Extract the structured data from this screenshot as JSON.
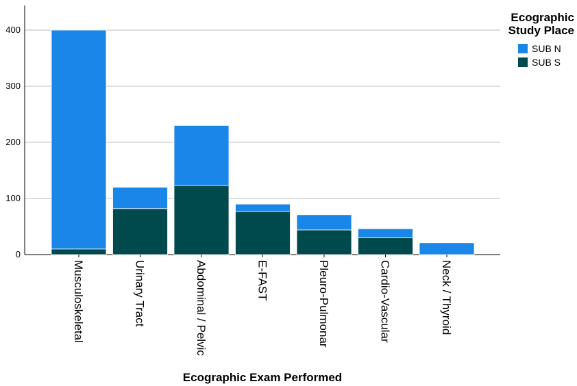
{
  "chart_data": {
    "type": "bar",
    "stacked": true,
    "title": "",
    "xlabel": "Ecographic Exam Performed",
    "ylabel": "",
    "ylim": [
      0,
      420
    ],
    "yticks": [
      0,
      100,
      200,
      300,
      400
    ],
    "grid": true,
    "categories": [
      "Musculoskeletal",
      "Urinary Tract",
      "Abdominal / Pelvic",
      "E-FAST",
      "Pleuro-Pulmonar",
      "Cardio-Vascular",
      "Neck / Thyroid"
    ],
    "series": [
      {
        "name": "SUB S",
        "color": "#004a4d",
        "values": [
          10,
          82,
          123,
          77,
          44,
          30,
          0
        ]
      },
      {
        "name": "SUB N",
        "color": "#1a86e8",
        "values": [
          390,
          38,
          107,
          13,
          27,
          16,
          21
        ]
      }
    ],
    "legend": {
      "title_lines": [
        "Ecographic",
        "Study Place"
      ],
      "placement": "top-right",
      "order": [
        "SUB N",
        "SUB S"
      ]
    }
  }
}
